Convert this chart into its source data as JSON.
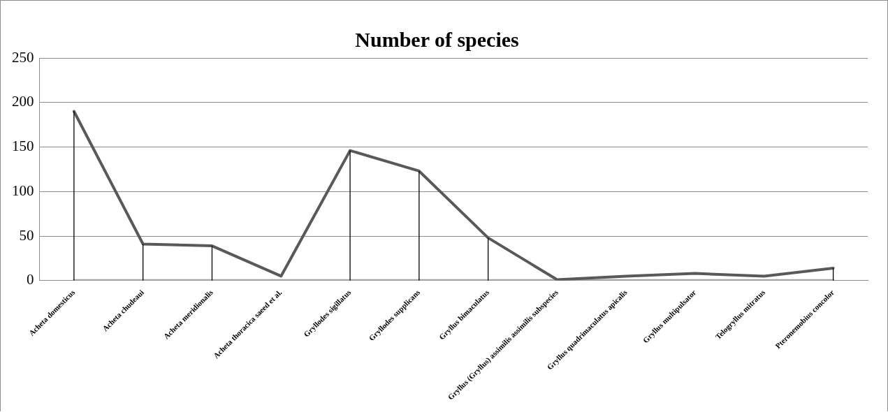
{
  "chart_data": {
    "type": "line",
    "title": "Number of species",
    "categories": [
      "Acheta domesticus",
      "Acheta chudeaui",
      "Acheta meridionalis",
      "Acheta thoracica saeed et al.",
      "Gryllodes sigillatus",
      "Gryllodes supplicans",
      "Gryllus bimaculatus",
      "Gryllus (Gryllus) assimilis assimilis subspecies",
      "Gryllus quadrimaculatus apicalis",
      "Gryllus multipulsator",
      "Telogryllus mitratus",
      "Pteronemobius concolor"
    ],
    "series": [
      {
        "color": "#595959",
        "values": [
          190,
          41,
          39,
          5,
          146,
          123,
          48,
          1,
          5,
          8,
          5,
          14
        ],
        "errors": [
          [
            0,
            190
          ],
          [
            0,
            41
          ],
          [
            0,
            39
          ],
          null,
          [
            0,
            146
          ],
          [
            0,
            123
          ],
          [
            0,
            48
          ],
          null,
          null,
          null,
          null,
          [
            0,
            14
          ]
        ]
      },
      {
        "color": "#a6a6a6",
        "values": [
          0,
          0,
          0,
          0,
          0,
          0,
          0,
          0,
          0,
          0,
          0,
          0
        ]
      }
    ],
    "ylim": [
      0,
      250
    ],
    "yticks": [
      0,
      50,
      100,
      150,
      200,
      250
    ],
    "grid": "y",
    "legend": false,
    "marker": "none",
    "line_style": "solid"
  }
}
